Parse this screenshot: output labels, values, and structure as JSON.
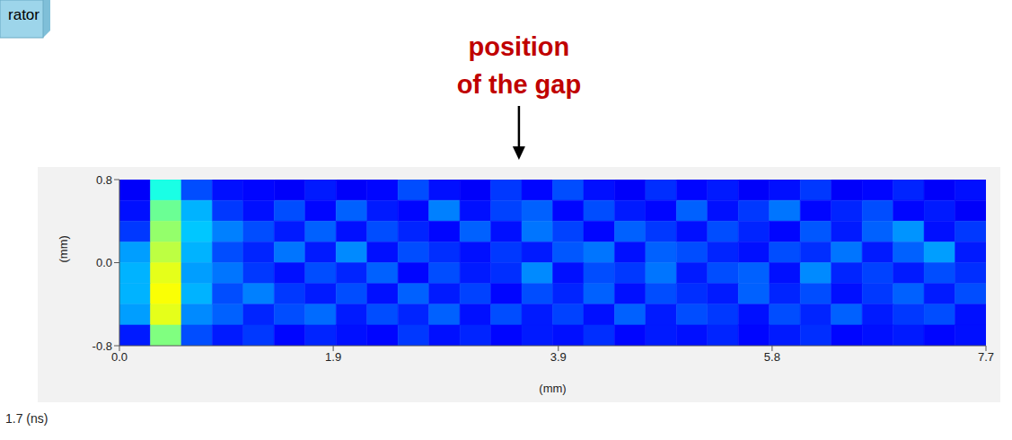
{
  "chart_data": {
    "type": "heatmap",
    "x_label": "(mm)",
    "y_label": "(mm)",
    "xlim": [
      0,
      7.7
    ],
    "ylim": [
      -0.8,
      0.8
    ],
    "xticks": [
      {
        "value": 0,
        "label": "0.0"
      },
      1.9,
      3.9,
      5.8,
      7.7
    ],
    "yticks": [
      -0.8,
      {
        "value": 0,
        "label": "0.0"
      },
      0.8
    ],
    "annotations": [
      {
        "text": "position of the gap",
        "x": 3.55
      },
      {
        "text": "1.7 (ns)"
      },
      {
        "text": "rator"
      }
    ],
    "cells": [
      [
        0.12,
        0.4,
        0.2,
        0.14,
        0.13,
        0.12,
        0.15,
        0.12,
        0.13,
        0.2,
        0.14,
        0.12,
        0.18,
        0.13,
        0.2,
        0.14,
        0.12,
        0.17,
        0.13,
        0.15,
        0.12,
        0.14,
        0.18,
        0.12,
        0.13,
        0.16,
        0.12,
        0.14
      ],
      [
        0.14,
        0.48,
        0.3,
        0.18,
        0.14,
        0.2,
        0.13,
        0.22,
        0.15,
        0.13,
        0.25,
        0.14,
        0.19,
        0.22,
        0.13,
        0.2,
        0.15,
        0.13,
        0.22,
        0.14,
        0.18,
        0.24,
        0.13,
        0.16,
        0.2,
        0.13,
        0.15,
        0.12
      ],
      [
        0.18,
        0.52,
        0.32,
        0.25,
        0.2,
        0.15,
        0.22,
        0.14,
        0.2,
        0.16,
        0.13,
        0.22,
        0.14,
        0.24,
        0.19,
        0.13,
        0.22,
        0.18,
        0.14,
        0.2,
        0.16,
        0.13,
        0.21,
        0.15,
        0.22,
        0.27,
        0.14,
        0.18
      ],
      [
        0.28,
        0.56,
        0.3,
        0.2,
        0.16,
        0.24,
        0.15,
        0.26,
        0.14,
        0.2,
        0.17,
        0.14,
        0.18,
        0.15,
        0.21,
        0.24,
        0.14,
        0.22,
        0.2,
        0.16,
        0.14,
        0.2,
        0.17,
        0.24,
        0.15,
        0.22,
        0.28,
        0.15
      ],
      [
        0.3,
        0.6,
        0.28,
        0.24,
        0.18,
        0.14,
        0.2,
        0.16,
        0.22,
        0.13,
        0.2,
        0.15,
        0.17,
        0.26,
        0.14,
        0.2,
        0.18,
        0.24,
        0.15,
        0.2,
        0.22,
        0.14,
        0.26,
        0.16,
        0.19,
        0.15,
        0.2,
        0.17
      ],
      [
        0.3,
        0.62,
        0.3,
        0.2,
        0.25,
        0.18,
        0.15,
        0.2,
        0.14,
        0.22,
        0.15,
        0.19,
        0.13,
        0.2,
        0.16,
        0.22,
        0.14,
        0.2,
        0.17,
        0.15,
        0.22,
        0.16,
        0.2,
        0.14,
        0.18,
        0.22,
        0.15,
        0.2
      ],
      [
        0.28,
        0.6,
        0.26,
        0.22,
        0.16,
        0.2,
        0.23,
        0.15,
        0.2,
        0.16,
        0.22,
        0.14,
        0.2,
        0.15,
        0.19,
        0.14,
        0.22,
        0.15,
        0.2,
        0.18,
        0.14,
        0.2,
        0.16,
        0.22,
        0.15,
        0.18,
        0.2,
        0.14
      ],
      [
        0.15,
        0.5,
        0.2,
        0.15,
        0.18,
        0.13,
        0.16,
        0.14,
        0.13,
        0.18,
        0.14,
        0.16,
        0.13,
        0.15,
        0.14,
        0.17,
        0.13,
        0.15,
        0.14,
        0.16,
        0.13,
        0.15,
        0.17,
        0.13,
        0.14,
        0.15,
        0.13,
        0.14
      ]
    ]
  }
}
